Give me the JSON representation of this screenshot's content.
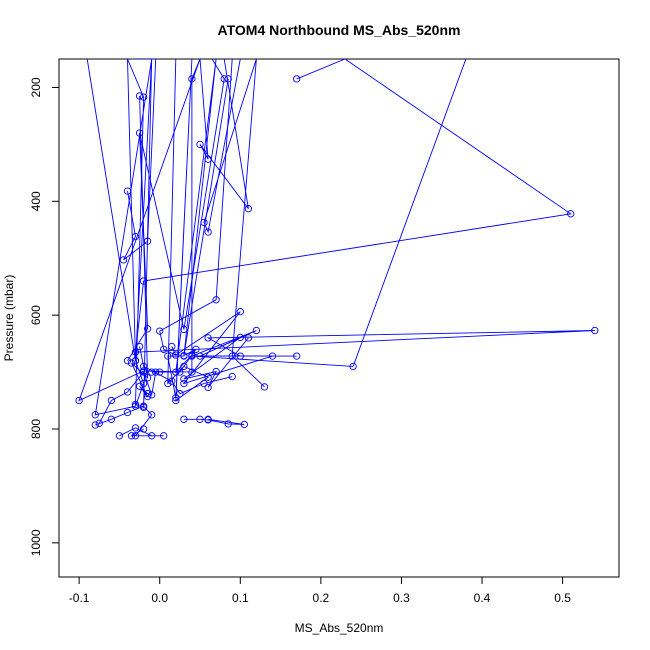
{
  "chart_data": {
    "type": "line",
    "title": "ATOM4 Northbound MS_Abs_520nm",
    "xlabel": "MS_Abs_520nm",
    "ylabel": "Pressure (mbar)",
    "xlim": [
      -0.125,
      0.57
    ],
    "ylim": [
      1060,
      150
    ],
    "y_reversed": true,
    "x_ticks": [
      -0.1,
      0.0,
      0.1,
      0.2,
      0.3,
      0.4,
      0.5
    ],
    "x_tick_labels": [
      "-0.1",
      "0.0",
      "0.1",
      "0.2",
      "0.3",
      "0.4",
      "0.5"
    ],
    "y_ticks": [
      200,
      400,
      600,
      800,
      1000
    ],
    "y_tick_labels": [
      "200",
      "400",
      "600",
      "800",
      "1000"
    ],
    "grid": false,
    "color": "#0000ff",
    "series": [
      {
        "points": [
          [
            0.17,
            185
          ],
          [
            0.23,
            150
          ],
          [
            0.51,
            422
          ],
          [
            -0.02,
            540
          ],
          [
            -0.03,
            665
          ],
          [
            0.54,
            627
          ],
          [
            0.06,
            640
          ],
          [
            0.1,
            672
          ],
          [
            0.17,
            672
          ],
          [
            0.04,
            672
          ],
          [
            0.24,
            690
          ],
          [
            0.38,
            150
          ]
        ]
      },
      {
        "points": [
          [
            0.08,
            150
          ],
          [
            0.11,
            413
          ],
          [
            0.05,
            300
          ],
          [
            0.06,
            326
          ],
          [
            0.05,
            150
          ],
          [
            0.04,
            185
          ],
          [
            0.04,
            700
          ],
          [
            -0.02,
            698
          ],
          [
            -0.1,
            750
          ],
          [
            0.05,
            150
          ]
        ]
      },
      {
        "points": [
          [
            -0.09,
            150
          ],
          [
            -0.03,
            680
          ],
          [
            -0.02,
            720
          ],
          [
            -0.03,
            760
          ],
          [
            -0.08,
            775
          ],
          [
            -0.01,
            150
          ],
          [
            -0.03,
            680
          ],
          [
            -0.04,
            150
          ],
          [
            -0.02,
            217
          ],
          [
            -0.03,
            757
          ],
          [
            -0.02,
            762
          ],
          [
            -0.01,
            150
          ]
        ]
      },
      {
        "points": [
          [
            0.02,
            150
          ],
          [
            0.01,
            720
          ],
          [
            0.03,
            690
          ],
          [
            0.06,
            709
          ],
          [
            0.02,
            750
          ],
          [
            0.04,
            150
          ],
          [
            0.02,
            745
          ],
          [
            0.01,
            672
          ],
          [
            0.03,
            672
          ],
          [
            0.07,
            150
          ],
          [
            0.02,
            700
          ],
          [
            0.04,
            670
          ]
        ]
      },
      {
        "points": [
          [
            0.02,
            670
          ],
          [
            0.1,
            594
          ],
          [
            0.03,
            720
          ],
          [
            0.14,
            672
          ],
          [
            0.04,
            672
          ],
          [
            0.12,
            627
          ],
          [
            0.05,
            672
          ],
          [
            0.1,
            639
          ],
          [
            0.03,
            712
          ],
          [
            0.07,
            699
          ],
          [
            0.06,
            727
          ],
          [
            0.11,
            640
          ]
        ]
      },
      {
        "points": [
          [
            -0.05,
            812
          ],
          [
            -0.03,
            798
          ],
          [
            -0.01,
            812
          ],
          [
            0.005,
            812
          ],
          [
            -0.035,
            812
          ],
          [
            -0.02,
            800
          ]
        ]
      },
      {
        "points": [
          [
            -0.08,
            793
          ],
          [
            -0.06,
            783
          ],
          [
            -0.04,
            771
          ],
          [
            -0.02,
            760
          ],
          [
            -0.01,
            775
          ],
          [
            -0.03,
            812
          ]
        ]
      },
      {
        "points": [
          [
            0.03,
            783
          ],
          [
            0.05,
            783
          ],
          [
            0.06,
            784
          ],
          [
            0.085,
            791
          ],
          [
            0.105,
            792
          ],
          [
            0.06,
            783
          ]
        ]
      },
      {
        "points": [
          [
            -0.075,
            790
          ],
          [
            -0.06,
            750
          ],
          [
            -0.04,
            735
          ],
          [
            -0.02,
            700
          ],
          [
            -0.01,
            740
          ],
          [
            -0.005,
            700
          ]
        ]
      },
      {
        "points": [
          [
            -0.04,
            382
          ],
          [
            -0.03,
            462
          ],
          [
            -0.045,
            503
          ],
          [
            -0.015,
            470
          ],
          [
            -0.005,
            150
          ],
          [
            -0.035,
            150
          ]
        ]
      },
      {
        "points": [
          [
            0.015,
            655
          ],
          [
            0.02,
            670
          ],
          [
            0.005,
            660
          ],
          [
            0.0,
            628
          ],
          [
            0.07,
            573
          ],
          [
            0.09,
            150
          ]
        ]
      },
      {
        "points": [
          [
            0.13,
            726
          ],
          [
            0.09,
            672
          ],
          [
            0.12,
            150
          ],
          [
            0.055,
            437
          ],
          [
            0.06,
            454
          ],
          [
            0.1,
            150
          ]
        ]
      },
      {
        "points": [
          [
            -0.025,
            655
          ],
          [
            -0.02,
            690
          ],
          [
            0.015,
            716
          ],
          [
            0.025,
            738
          ],
          [
            0.055,
            720
          ],
          [
            0.09,
            708
          ]
        ]
      },
      {
        "points": [
          [
            -0.04,
            680
          ],
          [
            -0.015,
            624
          ],
          [
            -0.025,
            280
          ],
          [
            0.03,
            625
          ],
          [
            0.08,
            185
          ],
          [
            0.065,
            150
          ]
        ]
      },
      {
        "points": [
          [
            -0.015,
            738
          ],
          [
            -0.025,
            725
          ],
          [
            -0.015,
            743
          ],
          [
            -0.035,
            684
          ],
          [
            -0.015,
            710
          ],
          [
            -0.025,
            215
          ]
        ]
      },
      {
        "points": [
          [
            0.0,
            700
          ],
          [
            -0.01,
            700
          ],
          [
            0.025,
            700
          ],
          [
            0.045,
            660
          ],
          [
            0.03,
            671
          ],
          [
            0.085,
            185
          ]
        ]
      }
    ]
  }
}
